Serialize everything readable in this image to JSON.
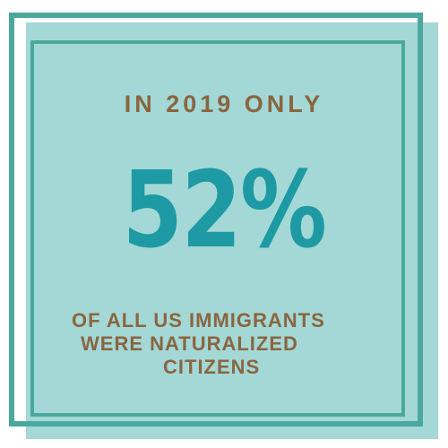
{
  "infographic": {
    "headline": "IN 2019 ONLY",
    "statistic": "52%",
    "caption_lines": [
      "OF ALL US IMMIGRANTS",
      "WERE NATURALIZED",
      "CITIZENS"
    ]
  },
  "colors": {
    "panel_fill": "#a3d8d6",
    "frame": "#4aa99c",
    "headline_text": "#8a6540",
    "statistic_text": "#1d9aa3",
    "caption_text": "#8a6540"
  }
}
